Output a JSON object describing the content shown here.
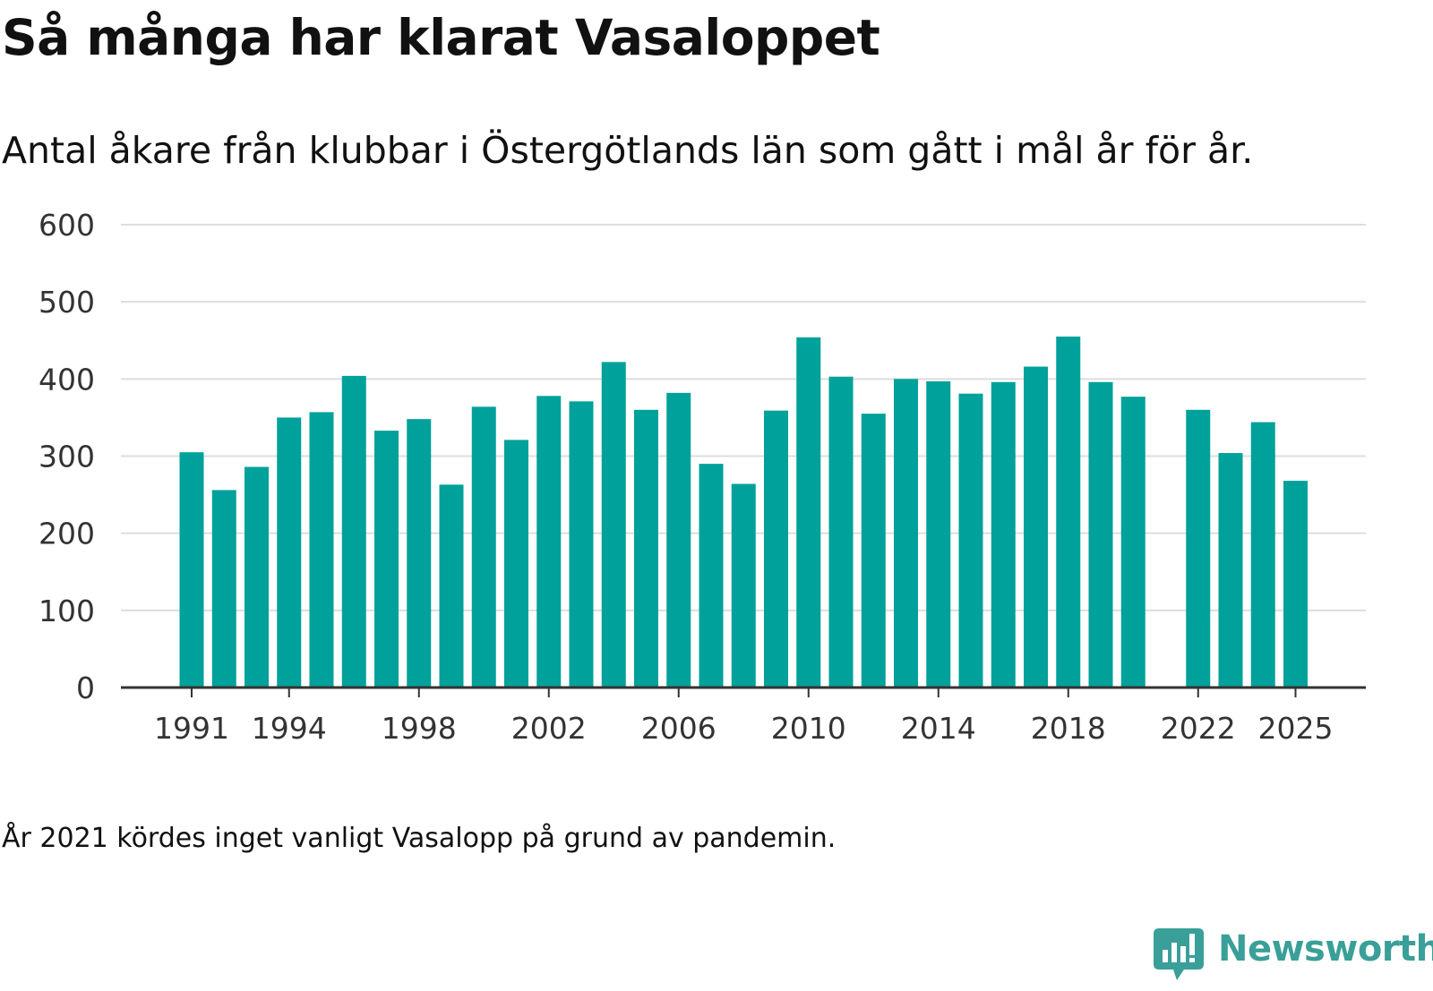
{
  "chart_data": {
    "type": "bar",
    "title": "Så många har klarat Vasaloppet",
    "subtitle": "Antal åkare från klubbar i Östergötlands län som gått i mål år för år.",
    "xlabel": "",
    "ylabel": "",
    "x": [
      1991,
      1992,
      1993,
      1994,
      1995,
      1996,
      1997,
      1998,
      1999,
      2000,
      2001,
      2002,
      2003,
      2004,
      2005,
      2006,
      2007,
      2008,
      2009,
      2010,
      2011,
      2012,
      2013,
      2014,
      2015,
      2016,
      2017,
      2018,
      2019,
      2020,
      2021,
      2022,
      2023,
      2024,
      2025
    ],
    "values": [
      305,
      256,
      286,
      350,
      357,
      404,
      333,
      348,
      263,
      364,
      321,
      378,
      371,
      422,
      360,
      382,
      290,
      264,
      359,
      454,
      403,
      355,
      400,
      397,
      381,
      396,
      416,
      455,
      396,
      377,
      null,
      360,
      304,
      344,
      268
    ],
    "xticks": [
      "1991",
      "1994",
      "1998",
      "2002",
      "2006",
      "2010",
      "2014",
      "2018",
      "2022",
      "2025"
    ],
    "yticks": [
      "0",
      "100",
      "200",
      "300",
      "400",
      "500",
      "600"
    ],
    "ylim": [
      0,
      600
    ],
    "grid": true,
    "legend": "none",
    "bar_color": "#00a19a"
  },
  "note": "År 2021 kördes inget vanligt Vasalopp på grund av pandemin.",
  "logo": {
    "text": "Newsworthy",
    "icon": "newsworthy-logo-icon",
    "color": "#3a9f99"
  }
}
